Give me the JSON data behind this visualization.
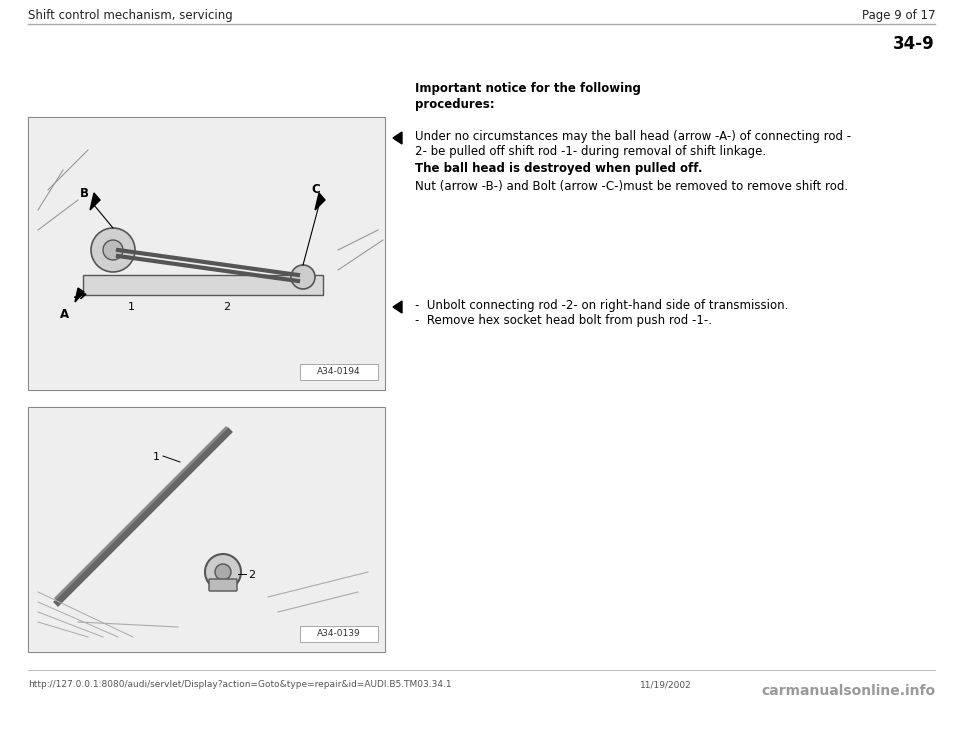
{
  "page_title_left": "Shift control mechanism, servicing",
  "page_title_right": "Page 9 of 17",
  "section_number": "34-9",
  "important_notice_line1": "Important notice for the following",
  "important_notice_line2": "procedures:",
  "bullet1_line1": "Under no circumstances may the ball head (arrow -A-) of connecting rod -",
  "bullet1_line2": "2- be pulled off shift rod -1- during removal of shift linkage.",
  "bullet1_bold": "The ball head is destroyed when pulled off.",
  "bullet1_line3": "Nut (arrow -B-) and Bolt (arrow -C-)must be removed to remove shift rod.",
  "bullet2_line1": "-  Unbolt connecting rod -2- on right-hand side of transmission.",
  "bullet2_line2": "-  Remove hex socket head bolt from push rod -1-.",
  "image1_label": "A34-0194",
  "image2_label": "A34-0139",
  "footer_url": "http://127.0.0.1:8080/audi/servlet/Display?action=Goto&type=repair&id=AUDI.B5.TM03.34.1",
  "footer_date": "11/19/2002",
  "footer_watermark": "carmanualsonline.info",
  "bg_color": "#ffffff",
  "text_color": "#000000",
  "gray_line_color": "#aaaaaa",
  "img_border_color": "#888888",
  "img_bg": "#f8f8f8",
  "sketch_color": "#555555",
  "header_fs": 8.5,
  "body_fs": 8.5,
  "section_fs": 12,
  "footer_fs": 6.5,
  "watermark_fs": 10
}
